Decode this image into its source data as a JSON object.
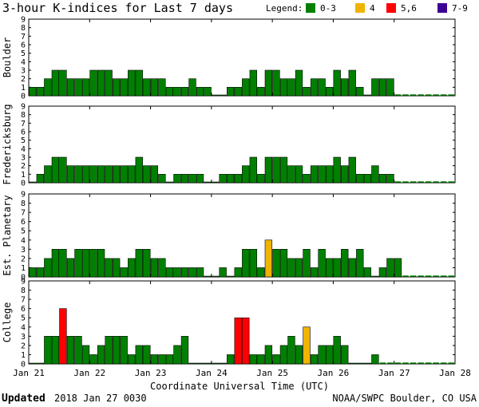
{
  "title": "3-hour K-indices for Last 7 days",
  "legend": {
    "label": "Legend:",
    "items": [
      {
        "label": "0-3",
        "color": "#008000"
      },
      {
        "label": "4",
        "color": "#f0b400"
      },
      {
        "label": "5,6",
        "color": "#ff0000"
      },
      {
        "label": "7-9",
        "color": "#3c0096"
      }
    ]
  },
  "xaxis": {
    "label": "Coordinate Universal Time (UTC)",
    "ticks": [
      "Jan 21",
      "Jan 22",
      "Jan 23",
      "Jan 24",
      "Jan 25",
      "Jan 26",
      "Jan 27",
      "Jan 28"
    ]
  },
  "footer": {
    "updated_label": "Updated",
    "updated_value": "2018 Jan 27 0030",
    "credit": "NOAA/SWPC Boulder, CO USA"
  },
  "chart_data": {
    "type": "bar",
    "ylim": [
      0,
      9
    ],
    "yticks": [
      "0",
      "1",
      "2",
      "3",
      "4",
      "5",
      "6",
      "7",
      "8",
      "9"
    ],
    "intervals_per_day": 8,
    "grid": false,
    "legend_placement": "top-right",
    "color_scale": [
      {
        "range": "0-3",
        "color": "#008000"
      },
      {
        "range": "4",
        "color": "#f0b400"
      },
      {
        "range": "5,6",
        "color": "#ff0000"
      },
      {
        "range": "7-9",
        "color": "#3c0096"
      }
    ],
    "panels": [
      {
        "name": "Boulder",
        "values": [
          1,
          1,
          2,
          3,
          3,
          2,
          2,
          2,
          3,
          3,
          3,
          2,
          2,
          3,
          3,
          2,
          2,
          2,
          1,
          1,
          1,
          2,
          1,
          1,
          0,
          0,
          1,
          1,
          2,
          3,
          1,
          3,
          3,
          2,
          2,
          3,
          1,
          2,
          2,
          1,
          3,
          2,
          3,
          1,
          0,
          2,
          2,
          2
        ]
      },
      {
        "name": "Fredericksburg",
        "values": [
          0,
          1,
          2,
          3,
          3,
          2,
          2,
          2,
          2,
          2,
          2,
          2,
          2,
          2,
          3,
          2,
          2,
          1,
          0,
          1,
          1,
          1,
          1,
          0,
          0,
          1,
          1,
          1,
          2,
          3,
          1,
          3,
          3,
          3,
          2,
          2,
          1,
          2,
          2,
          2,
          3,
          2,
          3,
          1,
          1,
          2,
          1,
          1
        ]
      },
      {
        "name": "Est. Planetary",
        "values": [
          1,
          1,
          2,
          3,
          3,
          2,
          3,
          3,
          3,
          3,
          2,
          2,
          1,
          2,
          3,
          3,
          2,
          2,
          1,
          1,
          1,
          1,
          1,
          0,
          0,
          1,
          0,
          1,
          3,
          3,
          1,
          4,
          3,
          3,
          2,
          2,
          3,
          1,
          3,
          2,
          2,
          3,
          2,
          3,
          1,
          0,
          1,
          2,
          2
        ]
      },
      {
        "name": "College",
        "values": [
          0,
          0,
          3,
          3,
          6,
          3,
          3,
          2,
          1,
          2,
          3,
          3,
          3,
          1,
          2,
          2,
          1,
          1,
          1,
          2,
          3,
          0,
          0,
          0,
          0,
          0,
          1,
          5,
          5,
          1,
          1,
          2,
          1,
          2,
          3,
          2,
          4,
          1,
          2,
          2,
          3,
          2,
          0,
          0,
          0,
          1
        ]
      }
    ]
  }
}
